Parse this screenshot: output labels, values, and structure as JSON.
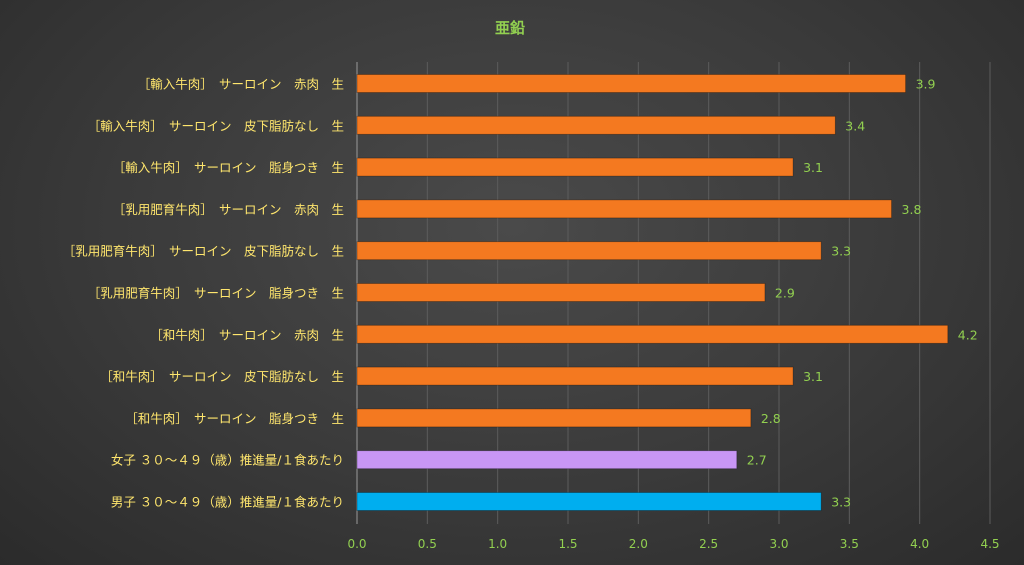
{
  "chart_data": {
    "type": "bar",
    "orientation": "horizontal",
    "title": "亜鉛",
    "categories": [
      "［輸入牛肉］　サーロイン　赤肉　生",
      "［輸入牛肉］　サーロイン　皮下脂肪なし　生",
      "［輸入牛肉］　サーロイン　脂身つき　生",
      "［乳用肥育牛肉］　サーロイン　赤肉　生",
      "［乳用肥育牛肉］　サーロイン　皮下脂肪なし　生",
      "［乳用肥育牛肉］　サーロイン　脂身つき　生",
      "［和牛肉］　サーロイン　赤肉　生",
      "［和牛肉］　サーロイン　皮下脂肪なし　生",
      "［和牛肉］　サーロイン　脂身つき　生",
      "女子 ３０～４９（歳）推進量/１食あたり",
      "男子 ３０～４９（歳）推進量/１食あたり"
    ],
    "values": [
      3.9,
      3.4,
      3.1,
      3.8,
      3.3,
      2.9,
      4.2,
      3.1,
      2.8,
      2.7,
      3.3
    ],
    "value_labels": [
      "3.9",
      "3.4",
      "3.1",
      "3.8",
      "3.3",
      "2.9",
      "4.2",
      "3.1",
      "2.8",
      "2.7",
      "3.3"
    ],
    "bar_colors": [
      "#f47920",
      "#f47920",
      "#f47920",
      "#f47920",
      "#f47920",
      "#f47920",
      "#f47920",
      "#f47920",
      "#f47920",
      "#c896f5",
      "#00aeef"
    ],
    "xlim": [
      0,
      4.5
    ],
    "xticks": [
      "0.0",
      "0.5",
      "1.0",
      "1.5",
      "2.0",
      "2.5",
      "3.0",
      "3.5",
      "4.0",
      "4.5"
    ],
    "xtick_values": [
      0,
      0.5,
      1.0,
      1.5,
      2.0,
      2.5,
      3.0,
      3.5,
      4.0,
      4.5
    ],
    "grid": true,
    "legend": "none",
    "colors": {
      "title": "#92d050",
      "category_label": "#ffe66d",
      "value_label": "#92d050",
      "tick_label": "#92d050",
      "grid": "#5c5c5c",
      "axis": "#9a9a9a"
    }
  }
}
